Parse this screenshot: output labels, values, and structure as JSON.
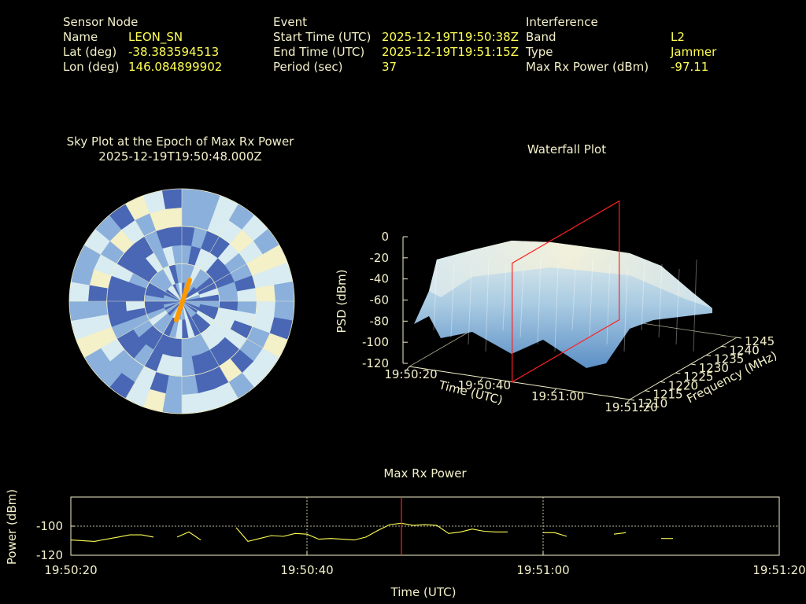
{
  "header": {
    "sensor": {
      "heading": "Sensor Node",
      "rows": [
        {
          "label": "Name",
          "value": "LEON_SN"
        },
        {
          "label": "Lat (deg)",
          "value": "-38.383594513"
        },
        {
          "label": "Lon (deg)",
          "value": "146.084899902"
        }
      ]
    },
    "event": {
      "heading": "Event",
      "rows": [
        {
          "label": "Start Time (UTC)",
          "value": "2025-12-19T19:50:38Z"
        },
        {
          "label": "End Time (UTC)",
          "value": "2025-12-19T19:51:15Z"
        },
        {
          "label": "Period (sec)",
          "value": "37"
        }
      ]
    },
    "interference": {
      "heading": "Interference",
      "rows": [
        {
          "label": "Band",
          "value": "L2"
        },
        {
          "label": "Type",
          "value": "Jammer"
        },
        {
          "label": "Max Rx Power (dBm)",
          "value": "-97.11"
        }
      ]
    }
  },
  "chart_data": [
    {
      "type": "heatmap",
      "title": "Sky Plot at the Epoch of Max Rx Power",
      "subtitle": "2025-12-19T19:50:48.000Z",
      "projection": "polar",
      "colormap": [
        "#4a67b5",
        "#8bb0db",
        "#d9ecf2",
        "#f4f0c8"
      ],
      "accent": "#ff9900",
      "ring_count": 6,
      "sector_count": 36
    },
    {
      "type": "area",
      "subtitle": "3d-surface",
      "title": "Waterfall Plot",
      "zlabel": "PSD (dBm)",
      "xlabel": "Time (UTC)",
      "ylabel": "Frequency (MHz)",
      "zticks": [
        "0",
        "-20",
        "-40",
        "-60",
        "-80",
        "-100",
        "-120"
      ],
      "xticks": [
        "19:50:20",
        "19:50:40",
        "19:51:00",
        "19:51:20"
      ],
      "yticks": [
        "1210",
        "1215",
        "1220",
        "1225",
        "1230",
        "1235",
        "1240",
        "1245"
      ],
      "zlim": [
        -120,
        0
      ],
      "ylim": [
        1210,
        1245
      ],
      "xlim": [
        "19:50:20",
        "19:51:20"
      ],
      "marker_time": "19:50:48",
      "marker_color": "#ff2020",
      "surface_colors": [
        "#4a7fc0",
        "#a8cbe4",
        "#f2f0d4"
      ]
    },
    {
      "type": "line",
      "title": "Max Rx Power",
      "xlabel": "Time (UTC)",
      "ylabel": "Power (dBm)",
      "xticks": [
        "19:50:20",
        "19:50:40",
        "19:51:00",
        "19:51:20"
      ],
      "yticks": [
        "-100",
        "-120"
      ],
      "ylim": [
        -120,
        -80
      ],
      "xlim": [
        "19:50:20",
        "19:51:20"
      ],
      "marker_time": "19:50:48",
      "line_color": "#ffff55",
      "marker_color": "#ff2020",
      "series": [
        {
          "segments": [
            [
              [
                "19:50:20",
                -109.5
              ],
              [
                "19:50:22",
                -110.5
              ],
              [
                "19:50:24",
                -107.5
              ],
              [
                "19:50:25",
                -106.0
              ],
              [
                "19:50:26",
                -106.0
              ],
              [
                "19:50:27",
                -107.5
              ]
            ],
            [
              [
                "19:50:29",
                -107.5
              ],
              [
                "19:50:30",
                -104.0
              ],
              [
                "19:50:31",
                -109.5
              ]
            ],
            [
              [
                "19:50:34",
                -101.0
              ],
              [
                "19:50:35",
                -110.5
              ],
              [
                "19:50:36",
                -108.5
              ],
              [
                "19:50:37",
                -106.5
              ],
              [
                "19:50:38",
                -107.0
              ],
              [
                "19:50:39",
                -105.0
              ],
              [
                "19:50:40",
                -105.5
              ],
              [
                "19:50:41",
                -109.0
              ],
              [
                "19:50:42",
                -108.5
              ],
              [
                "19:50:43",
                -109.0
              ],
              [
                "19:50:44",
                -109.5
              ],
              [
                "19:50:45",
                -107.5
              ],
              [
                "19:50:46",
                -103.0
              ],
              [
                "19:50:47",
                -99.0
              ],
              [
                "19:50:48",
                -98.0
              ],
              [
                "19:50:49",
                -99.5
              ],
              [
                "19:50:50",
                -99.0
              ],
              [
                "19:50:51",
                -99.5
              ],
              [
                "19:50:52",
                -105.0
              ],
              [
                "19:50:53",
                -104.0
              ],
              [
                "19:50:54",
                -102.0
              ],
              [
                "19:50:55",
                -103.5
              ],
              [
                "19:50:56",
                -104.0
              ],
              [
                "19:50:57",
                -104.0
              ]
            ],
            [
              [
                "19:51:00",
                -104.5
              ],
              [
                "19:51:01",
                -104.5
              ],
              [
                "19:51:02",
                -107.0
              ]
            ],
            [
              [
                "19:51:06",
                -105.5
              ],
              [
                "19:51:07",
                -104.5
              ]
            ],
            [
              [
                "19:51:10",
                -108.5
              ],
              [
                "19:51:11",
                -108.5
              ]
            ]
          ]
        }
      ]
    }
  ]
}
